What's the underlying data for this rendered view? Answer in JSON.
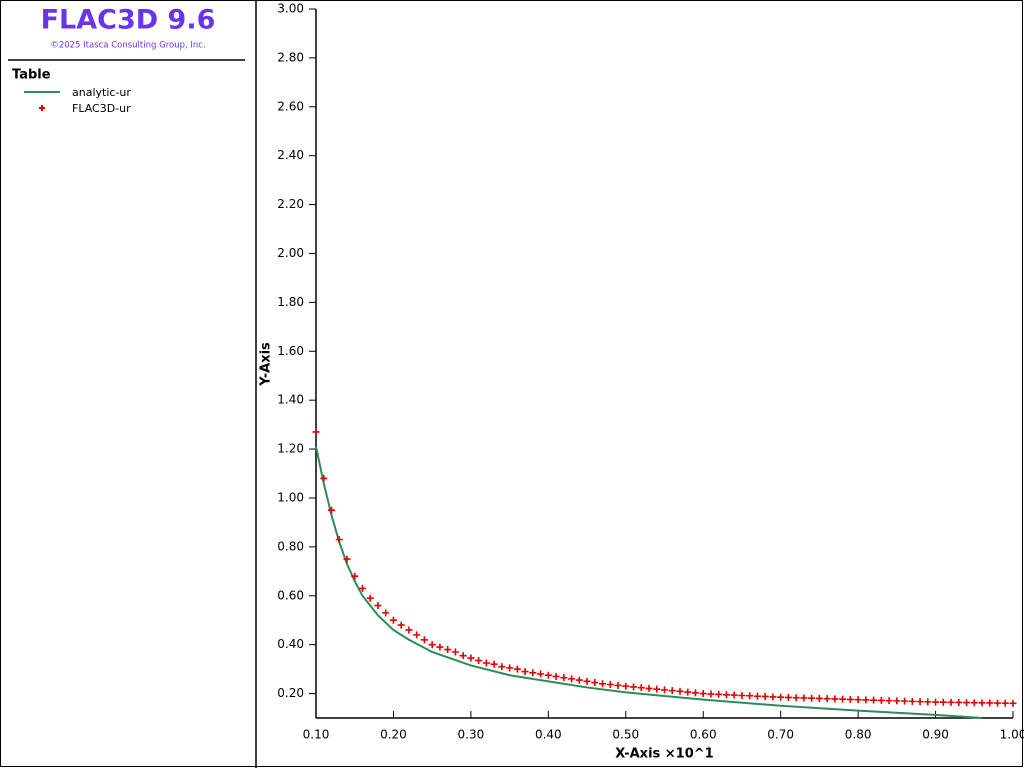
{
  "app": {
    "title": "FLAC3D 9.6",
    "copyright": "©2025 Itasca Consulting Group, Inc.",
    "panel_title": "Table",
    "title_color": "#6a35e8"
  },
  "chart_data": {
    "type": "line",
    "x_label": "X-Axis ×10^1",
    "y_label": "Y-Axis",
    "xlim": [
      0.1,
      1.0
    ],
    "ylim": [
      0.1,
      3.0
    ],
    "xticks": [
      {
        "value": 0.1,
        "label": "0.10"
      },
      {
        "value": 0.2,
        "label": "0.20"
      },
      {
        "value": 0.3,
        "label": "0.30"
      },
      {
        "value": 0.4,
        "label": "0.40"
      },
      {
        "value": 0.5,
        "label": "0.50"
      },
      {
        "value": 0.6,
        "label": "0.60"
      },
      {
        "value": 0.7,
        "label": "0.70"
      },
      {
        "value": 0.8,
        "label": "0.80"
      },
      {
        "value": 0.9,
        "label": "0.90"
      },
      {
        "value": 1.0,
        "label": "1.00"
      }
    ],
    "yticks": [
      {
        "value": 0.2,
        "label": "0.20"
      },
      {
        "value": 0.4,
        "label": "0.40"
      },
      {
        "value": 0.6,
        "label": "0.60"
      },
      {
        "value": 0.8,
        "label": "0.80"
      },
      {
        "value": 1.0,
        "label": "1.00"
      },
      {
        "value": 1.2,
        "label": "1.20"
      },
      {
        "value": 1.4,
        "label": "1.40"
      },
      {
        "value": 1.6,
        "label": "1.60"
      },
      {
        "value": 1.8,
        "label": "1.80"
      },
      {
        "value": 2.0,
        "label": "2.00"
      },
      {
        "value": 2.2,
        "label": "2.20"
      },
      {
        "value": 2.4,
        "label": "2.40"
      },
      {
        "value": 2.6,
        "label": "2.60"
      },
      {
        "value": 2.8,
        "label": "2.80"
      },
      {
        "value": 3.0,
        "label": "3.00"
      }
    ],
    "series": [
      {
        "name": "analytic-ur",
        "color": "#2e8b57",
        "marker": "line",
        "x": [
          0.1,
          0.11,
          0.12,
          0.13,
          0.14,
          0.15,
          0.16,
          0.18,
          0.2,
          0.22,
          0.25,
          0.3,
          0.35,
          0.4,
          0.45,
          0.5,
          0.6,
          0.7,
          0.8,
          0.9,
          0.96
        ],
        "values": [
          1.21,
          1.06,
          0.93,
          0.82,
          0.73,
          0.66,
          0.6,
          0.52,
          0.46,
          0.42,
          0.37,
          0.315,
          0.275,
          0.25,
          0.225,
          0.205,
          0.175,
          0.15,
          0.13,
          0.113,
          0.1
        ]
      },
      {
        "name": "FLAC3D-ur",
        "color": "#e00000",
        "marker": "plus",
        "x": [
          0.1,
          0.11,
          0.12,
          0.13,
          0.14,
          0.15,
          0.16,
          0.17,
          0.18,
          0.19,
          0.2,
          0.21,
          0.22,
          0.23,
          0.24,
          0.25,
          0.26,
          0.27,
          0.28,
          0.29,
          0.3,
          0.31,
          0.32,
          0.33,
          0.34,
          0.35,
          0.36,
          0.37,
          0.38,
          0.39,
          0.4,
          0.41,
          0.42,
          0.43,
          0.44,
          0.45,
          0.46,
          0.47,
          0.48,
          0.49,
          0.5,
          0.51,
          0.52,
          0.53,
          0.54,
          0.55,
          0.56,
          0.57,
          0.58,
          0.59,
          0.6,
          0.61,
          0.62,
          0.63,
          0.64,
          0.65,
          0.66,
          0.67,
          0.68,
          0.69,
          0.7,
          0.71,
          0.72,
          0.73,
          0.74,
          0.75,
          0.76,
          0.77,
          0.78,
          0.79,
          0.8,
          0.81,
          0.82,
          0.83,
          0.84,
          0.85,
          0.86,
          0.87,
          0.88,
          0.89,
          0.9,
          0.91,
          0.92,
          0.93,
          0.94,
          0.95,
          0.96,
          0.97,
          0.98,
          0.99,
          1.0
        ],
        "values": [
          1.27,
          1.08,
          0.95,
          0.83,
          0.75,
          0.68,
          0.63,
          0.59,
          0.56,
          0.53,
          0.5,
          0.48,
          0.46,
          0.44,
          0.42,
          0.4,
          0.39,
          0.38,
          0.37,
          0.355,
          0.345,
          0.335,
          0.325,
          0.32,
          0.31,
          0.305,
          0.3,
          0.29,
          0.285,
          0.28,
          0.275,
          0.27,
          0.265,
          0.26,
          0.255,
          0.25,
          0.245,
          0.24,
          0.237,
          0.233,
          0.23,
          0.227,
          0.224,
          0.221,
          0.218,
          0.215,
          0.212,
          0.209,
          0.206,
          0.203,
          0.2,
          0.198,
          0.197,
          0.195,
          0.194,
          0.192,
          0.191,
          0.189,
          0.188,
          0.186,
          0.185,
          0.184,
          0.183,
          0.182,
          0.181,
          0.18,
          0.179,
          0.178,
          0.177,
          0.176,
          0.175,
          0.174,
          0.173,
          0.172,
          0.171,
          0.17,
          0.169,
          0.168,
          0.167,
          0.166,
          0.165,
          0.1645,
          0.164,
          0.1635,
          0.163,
          0.1625,
          0.162,
          0.1615,
          0.161,
          0.1605,
          0.16
        ]
      }
    ]
  }
}
